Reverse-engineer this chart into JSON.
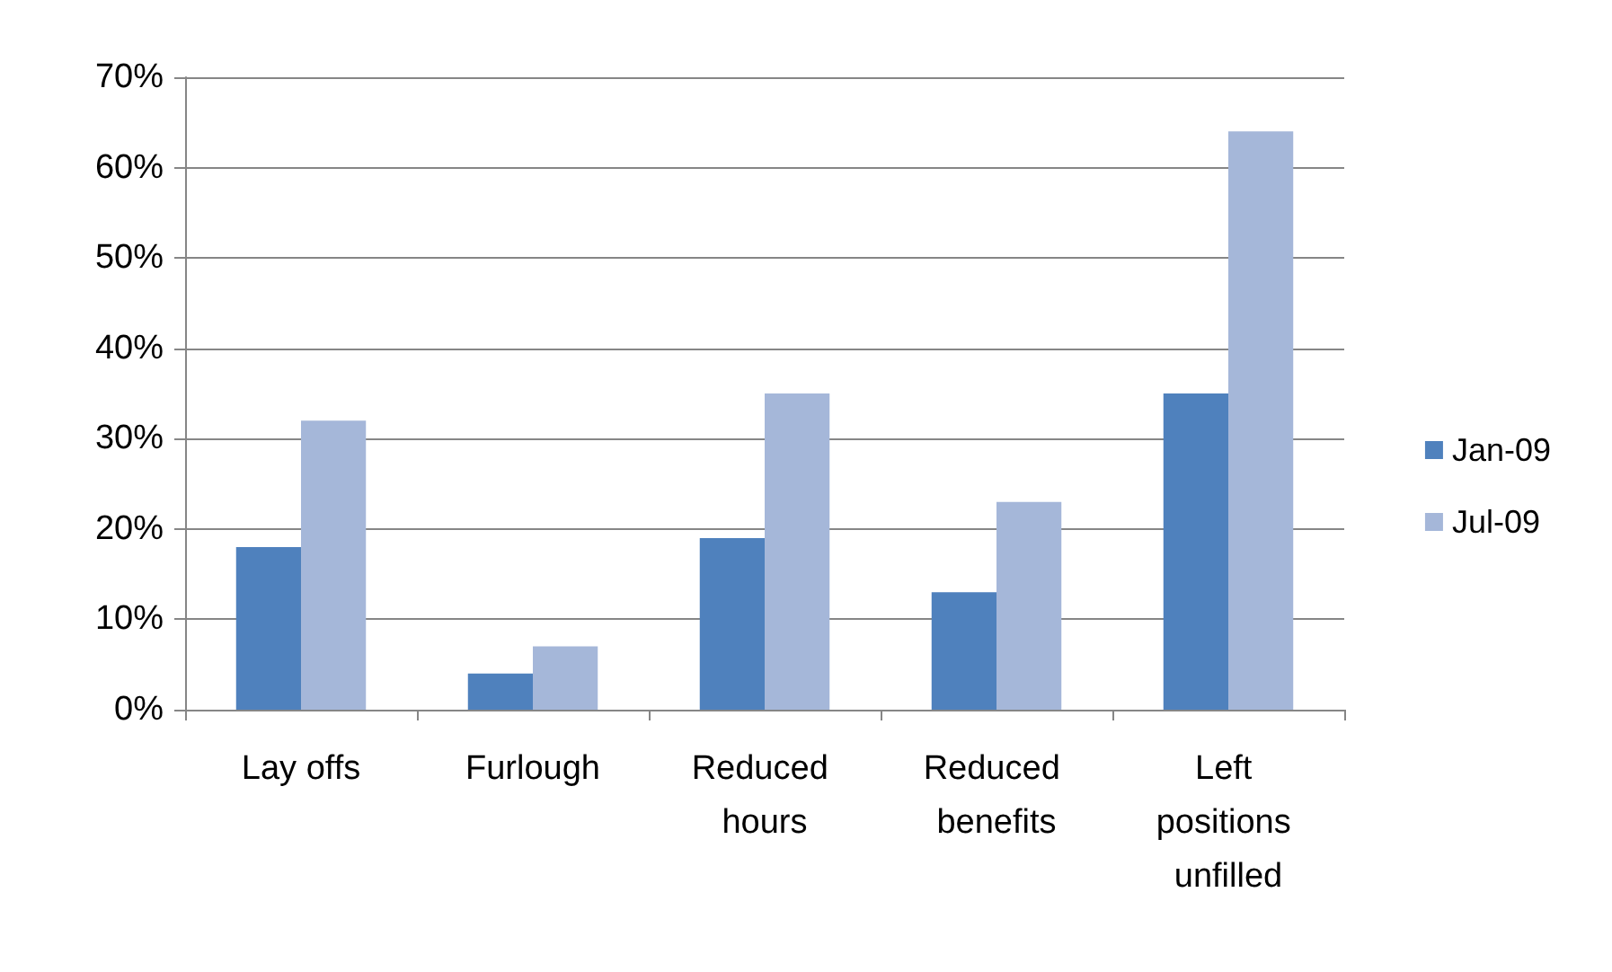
{
  "chart_data": {
    "type": "bar",
    "categories": [
      "Lay offs",
      "Furlough",
      "Reduced hours",
      "Reduced benefits",
      "Left positions unfilled"
    ],
    "series": [
      {
        "name": "Jan-09",
        "color": "#4f81bd",
        "values": [
          18,
          4,
          19,
          13,
          35
        ]
      },
      {
        "name": "Jul-09",
        "color": "#a5b7d9",
        "values": [
          32,
          7,
          35,
          23,
          64
        ]
      }
    ],
    "ylim": [
      0,
      70
    ],
    "yticks": [
      {
        "value": 0,
        "label": "0%"
      },
      {
        "value": 10,
        "label": "10%"
      },
      {
        "value": 20,
        "label": "20%"
      },
      {
        "value": 30,
        "label": "30%"
      },
      {
        "value": 40,
        "label": "40%"
      },
      {
        "value": 50,
        "label": "50%"
      },
      {
        "value": 60,
        "label": "60%"
      },
      {
        "value": 70,
        "label": "70%"
      }
    ],
    "grid": "y",
    "legend": "right"
  }
}
